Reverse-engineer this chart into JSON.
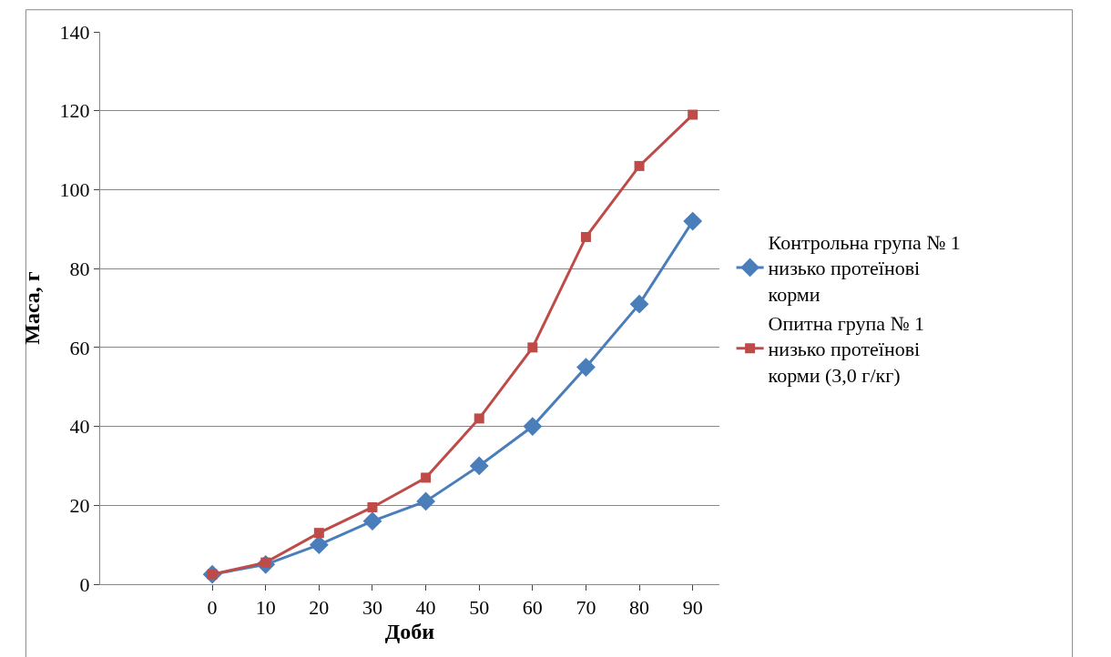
{
  "chart_data": {
    "type": "line",
    "xlabel": "Доби",
    "ylabel": "Маса, г",
    "categories": [
      "0",
      "10",
      "20",
      "30",
      "40",
      "50",
      "60",
      "70",
      "80",
      "90"
    ],
    "series": [
      {
        "name": "Контрольна група № 1 низько протеїнові корми",
        "color": "#4a7ebb",
        "marker": "diamond",
        "values": [
          2.5,
          5,
          10,
          16,
          21,
          30,
          40,
          55,
          71,
          92
        ]
      },
      {
        "name": "Опитна група № 1 низько протеїнові корми (3,0 г/кг)",
        "color": "#be4b48",
        "marker": "square",
        "values": [
          2.5,
          5.5,
          13,
          19.5,
          27,
          42,
          60,
          88,
          106,
          119
        ]
      }
    ],
    "ylim": [
      0,
      140
    ],
    "yticks": [
      0,
      20,
      40,
      60,
      80,
      100,
      120,
      140
    ],
    "grid": "y",
    "legend": "right",
    "line_style": "solid"
  }
}
